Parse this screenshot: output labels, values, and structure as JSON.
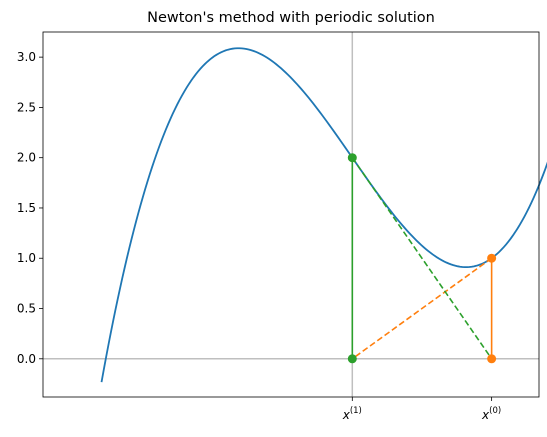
{
  "chart_data": {
    "type": "line",
    "title": "Newton's method with periodic solution",
    "xlabel": "",
    "ylabel": "",
    "xlim": [
      -2.22,
      1.34
    ],
    "ylim": [
      -0.38,
      3.25
    ],
    "grid": false,
    "y_ticks": [
      0.0,
      0.5,
      1.0,
      1.5,
      2.0,
      2.5,
      3.0
    ],
    "y_tick_labels": [
      "0.0",
      "0.5",
      "1.0",
      "1.5",
      "2.0",
      "2.5",
      "3.0"
    ],
    "x_ticks": [
      {
        "x": 0,
        "base": "x",
        "sup": "(1)"
      },
      {
        "x": 1,
        "base": "x",
        "sup": "(0)"
      }
    ],
    "reference_lines": [
      {
        "orientation": "horizontal",
        "value": 0,
        "color": "#bfbfbf"
      },
      {
        "orientation": "vertical",
        "value": 0,
        "color": "#bfbfbf"
      }
    ],
    "curve": {
      "function": "x^3 - 2x + 2",
      "x_range": [
        -1.8,
        1.5
      ],
      "color": "#1f77b4"
    },
    "series": [
      {
        "color": "#ff7f0e",
        "style": "solid",
        "points": [
          {
            "x": 1,
            "y": 0
          },
          {
            "x": 1,
            "y": 1
          }
        ],
        "markers": true
      },
      {
        "color": "#ff7f0e",
        "style": "dashed",
        "points": [
          {
            "x": 1,
            "y": 1
          },
          {
            "x": 0,
            "y": 0
          }
        ],
        "markers": false
      },
      {
        "color": "#2ca02c",
        "style": "solid",
        "points": [
          {
            "x": 0,
            "y": 0
          },
          {
            "x": 0,
            "y": 2
          }
        ],
        "markers": true
      },
      {
        "color": "#2ca02c",
        "style": "dashed",
        "points": [
          {
            "x": 0,
            "y": 2
          },
          {
            "x": 1,
            "y": 0
          }
        ],
        "markers": false
      }
    ]
  }
}
